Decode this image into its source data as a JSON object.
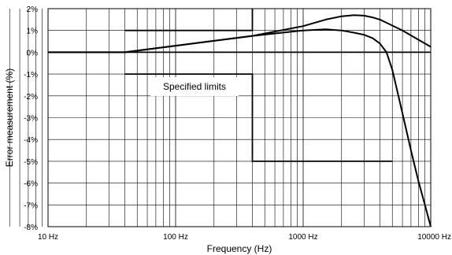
{
  "chart_data": {
    "type": "line",
    "xlabel": "Frequency (Hz)",
    "ylabel": "Error measurement (%)",
    "x_scale": "log",
    "xlim": [
      10,
      10000
    ],
    "ylim": [
      -8,
      2
    ],
    "x_ticks": [
      {
        "value": 10,
        "label": "10 Hz"
      },
      {
        "value": 100,
        "label": "100 Hz"
      },
      {
        "value": 1000,
        "label": "1000 Hz"
      },
      {
        "value": 10000,
        "label": "10000 Hz"
      }
    ],
    "y_ticks": [
      {
        "value": 2,
        "label": "2%"
      },
      {
        "value": 1,
        "label": "1%"
      },
      {
        "value": 0,
        "label": "0%"
      },
      {
        "value": -1,
        "label": "-1%"
      },
      {
        "value": -2,
        "label": "-2%"
      },
      {
        "value": -3,
        "label": "-3%"
      },
      {
        "value": -4,
        "label": "-4%"
      },
      {
        "value": -5,
        "label": "-5%"
      },
      {
        "value": -6,
        "label": "-6%"
      },
      {
        "value": -7,
        "label": "-7%"
      },
      {
        "value": -8,
        "label": "-8%"
      }
    ],
    "grid": true,
    "annotation": "Specified limits",
    "limits": {
      "upper": [
        [
          40,
          1
        ],
        [
          400,
          1
        ],
        [
          400,
          2
        ]
      ],
      "lower": [
        [
          40,
          -1
        ],
        [
          400,
          -1
        ],
        [
          400,
          -5
        ],
        [
          5000,
          -5
        ]
      ]
    },
    "series": [
      {
        "x": [
          10,
          40,
          100,
          400,
          1000,
          1500,
          2000,
          2500,
          3000,
          3500,
          4000,
          6000,
          10000
        ],
        "y": [
          0,
          0,
          0.3,
          0.75,
          1.2,
          1.5,
          1.65,
          1.7,
          1.68,
          1.6,
          1.5,
          1.0,
          0.25
        ]
      },
      {
        "x": [
          10,
          40,
          400,
          1000,
          1500,
          2000,
          2500,
          3000,
          3500,
          4000,
          4500,
          5000,
          6000,
          7000,
          8000,
          9000,
          10000
        ],
        "y": [
          0,
          0,
          0.75,
          1.0,
          1.05,
          1.0,
          0.9,
          0.8,
          0.65,
          0.4,
          0,
          -0.8,
          -2.8,
          -4.5,
          -5.9,
          -7.0,
          -8.0
        ]
      }
    ]
  }
}
